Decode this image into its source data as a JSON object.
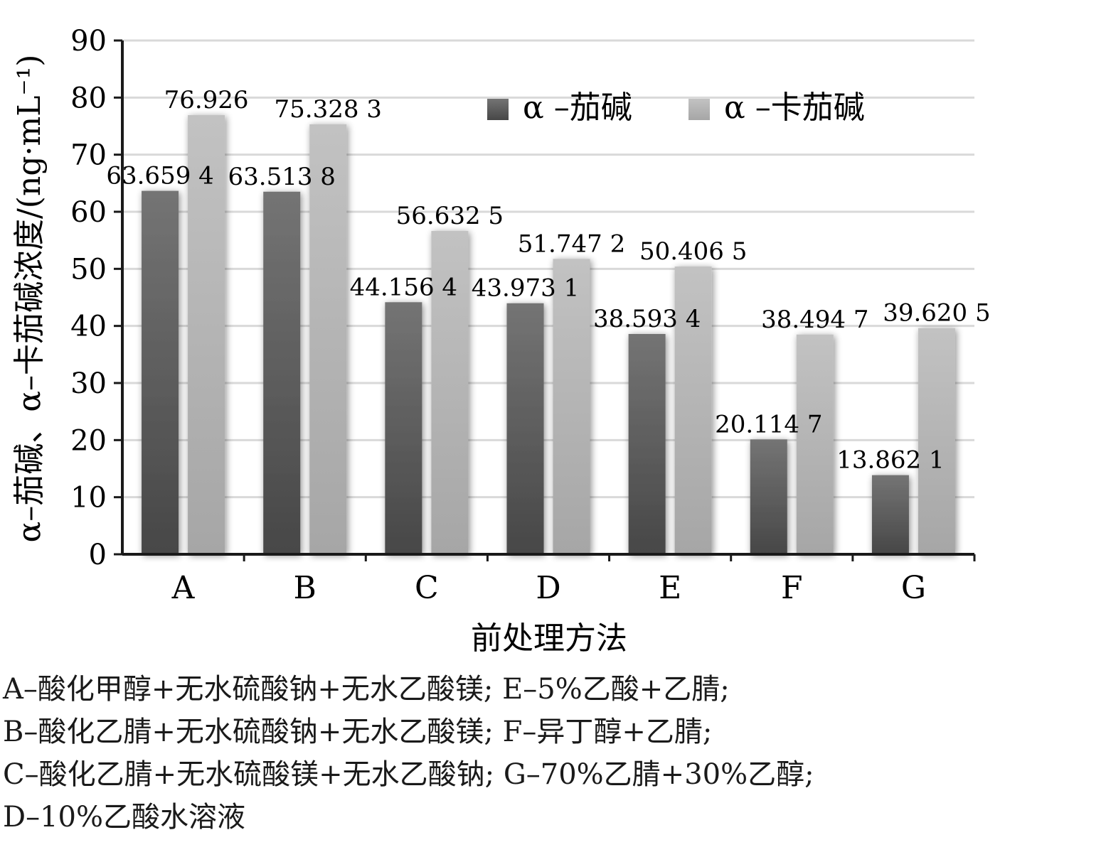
{
  "chart_data": {
    "type": "bar",
    "categories": [
      "A",
      "B",
      "C",
      "D",
      "E",
      "F",
      "G"
    ],
    "series": [
      {
        "name": "α –茄碱",
        "color": "#5f5f5f",
        "values": [
          63.6594,
          63.5138,
          44.1564,
          43.9731,
          38.5934,
          20.1147,
          13.8621
        ],
        "labels": [
          "63.659 4",
          "63.513 8",
          "44.156 4",
          "43.973 1",
          "38.593 4",
          "20.114 7",
          "13.862 1"
        ]
      },
      {
        "name": "α –卡茄碱",
        "color": "#b4b4b4",
        "values": [
          76.926,
          75.3283,
          56.6325,
          51.7472,
          50.4065,
          38.4947,
          39.6205
        ],
        "labels": [
          "76.926",
          "75.328 3",
          "56.632 5",
          "51.747 2",
          "50.406 5",
          "38.494 7",
          "39.620 5"
        ]
      }
    ],
    "yticks": [
      0,
      10,
      20,
      30,
      40,
      50,
      60,
      70,
      80,
      90
    ],
    "ylim": [
      0,
      90
    ],
    "xlabel": "前处理方法",
    "ylabel": "α–茄碱、α–卡茄碱浓度/(ng·mL⁻¹)",
    "legend_position": "top-right",
    "grid": "horizontal"
  },
  "notes": [
    "A–酸化甲醇+无水硫酸钠+无水乙酸镁; E–5%乙酸+乙腈;",
    "B–酸化乙腈+无水硫酸钠+无水乙酸镁; F–异丁醇+乙腈;",
    "C–酸化乙腈+无水硫酸镁+无水乙酸钠; G–70%乙腈+30%乙醇;",
    "D–10%乙酸水溶液"
  ]
}
